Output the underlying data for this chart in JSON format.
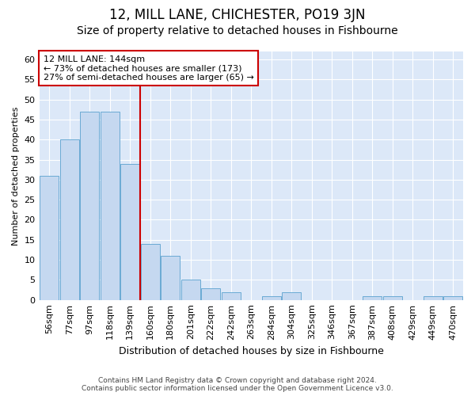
{
  "title": "12, MILL LANE, CHICHESTER, PO19 3JN",
  "subtitle": "Size of property relative to detached houses in Fishbourne",
  "xlabel": "Distribution of detached houses by size in Fishbourne",
  "ylabel": "Number of detached properties",
  "footer_line1": "Contains HM Land Registry data © Crown copyright and database right 2024.",
  "footer_line2": "Contains public sector information licensed under the Open Government Licence v3.0.",
  "bar_labels": [
    "56sqm",
    "77sqm",
    "97sqm",
    "118sqm",
    "139sqm",
    "160sqm",
    "180sqm",
    "201sqm",
    "222sqm",
    "242sqm",
    "263sqm",
    "284sqm",
    "304sqm",
    "325sqm",
    "346sqm",
    "367sqm",
    "387sqm",
    "408sqm",
    "429sqm",
    "449sqm",
    "470sqm"
  ],
  "bar_heights": [
    31,
    40,
    47,
    47,
    34,
    14,
    11,
    5,
    3,
    2,
    0,
    1,
    2,
    0,
    0,
    0,
    1,
    1,
    0,
    1,
    1
  ],
  "bar_color": "#c5d8f0",
  "bar_edge_color": "#6aaad4",
  "vline_x": 4.5,
  "vline_color": "#cc0000",
  "annotation_line1": "12 MILL LANE: 144sqm",
  "annotation_line2": "← 73% of detached houses are smaller (173)",
  "annotation_line3": "27% of semi-detached houses are larger (65) →",
  "annotation_box_color": "#cc0000",
  "ylim": [
    0,
    62
  ],
  "yticks": [
    0,
    5,
    10,
    15,
    20,
    25,
    30,
    35,
    40,
    45,
    50,
    55,
    60
  ],
  "bg_color": "#ffffff",
  "plot_bg_color": "#dce8f8",
  "grid_color": "#ffffff",
  "title_fontsize": 12,
  "subtitle_fontsize": 10,
  "xlabel_fontsize": 9,
  "ylabel_fontsize": 8,
  "tick_fontsize": 8,
  "annotation_fontsize": 8,
  "footer_fontsize": 6.5
}
